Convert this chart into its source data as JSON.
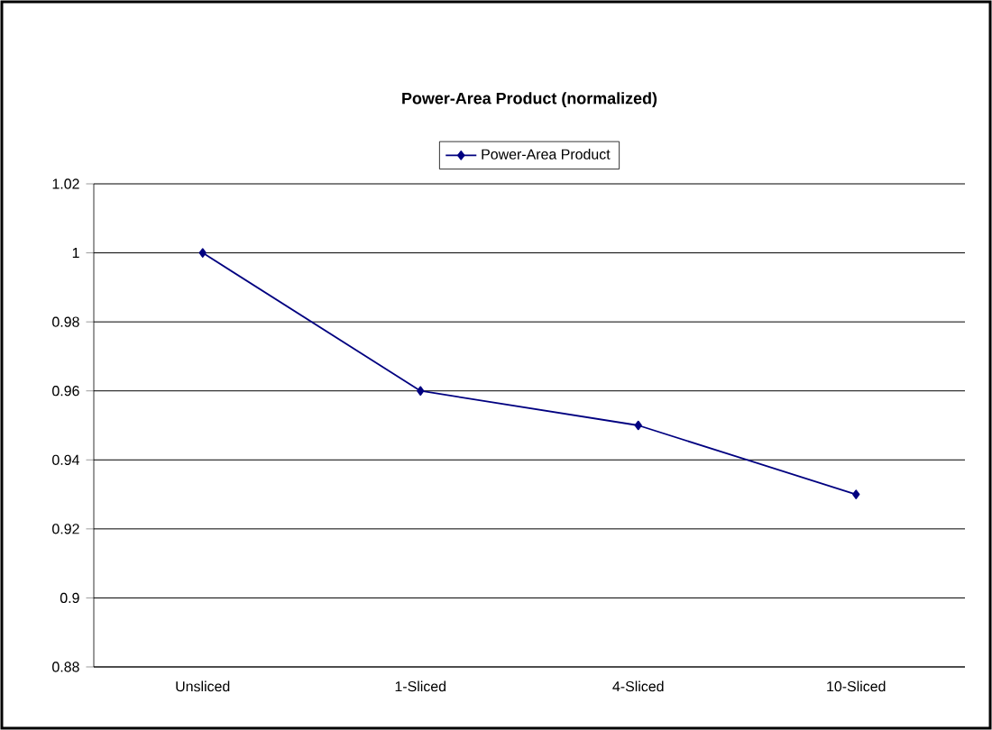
{
  "chart_data": {
    "type": "line",
    "title": "Power-Area Product (normalized)",
    "categories": [
      "Unsliced",
      "1-Sliced",
      "4-Sliced",
      "10-Sliced"
    ],
    "series": [
      {
        "name": "Power-Area Product",
        "color": "#000080",
        "values": [
          1.0,
          0.96,
          0.95,
          0.93
        ]
      }
    ],
    "ylim": [
      0.88,
      1.02
    ],
    "yticks": [
      0.88,
      0.9,
      0.92,
      0.94,
      0.96,
      0.98,
      1,
      1.02
    ],
    "grid": "y",
    "legend": "top",
    "marker": "diamond",
    "line_style": "solid"
  }
}
